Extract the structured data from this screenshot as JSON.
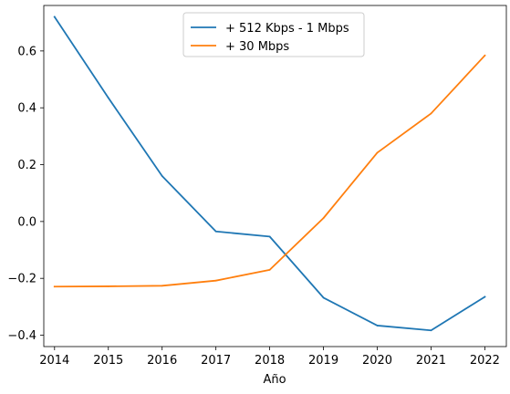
{
  "chart_data": {
    "type": "line",
    "title": "",
    "xlabel": "Año",
    "ylabel": "",
    "x": [
      2014,
      2015,
      2016,
      2017,
      2018,
      2019,
      2020,
      2021,
      2022
    ],
    "xlim": [
      2013.8,
      2022.4
    ],
    "ylim": [
      -0.44,
      0.76
    ],
    "xticks": [
      "2014",
      "2015",
      "2016",
      "2017",
      "2018",
      "2019",
      "2020",
      "2021",
      "2022"
    ],
    "yticks": [
      "−0.4",
      "−0.2",
      "0.0",
      "0.2",
      "0.4",
      "0.6"
    ],
    "ytick_values": [
      -0.4,
      -0.2,
      0.0,
      0.2,
      0.4,
      0.6
    ],
    "grid": false,
    "legend_position": "upper-center",
    "series": [
      {
        "name": "+ 512 Kbps - 1 Mbps",
        "color": "#1f77b4",
        "values": [
          0.72,
          0.435,
          0.16,
          -0.035,
          -0.053,
          -0.268,
          -0.366,
          -0.383,
          -0.265
        ]
      },
      {
        "name": "+ 30 Mbps",
        "color": "#ff7f0e",
        "values": [
          -0.229,
          -0.228,
          -0.226,
          -0.208,
          -0.17,
          0.012,
          0.242,
          0.38,
          0.584
        ]
      }
    ]
  }
}
